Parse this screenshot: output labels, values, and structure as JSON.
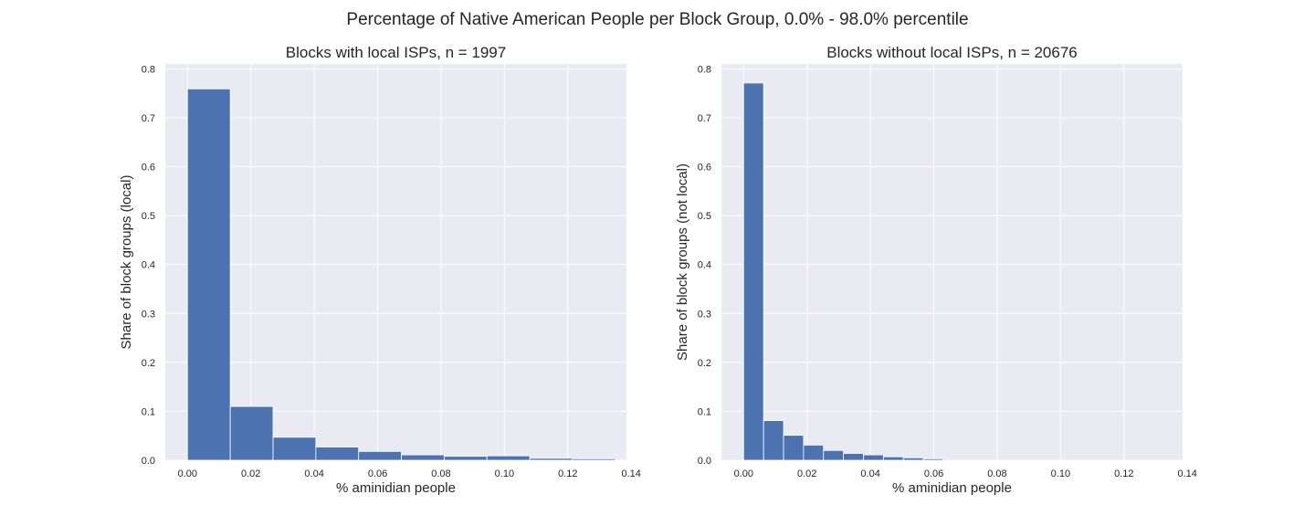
{
  "figure": {
    "suptitle": "Percentage of Native American People per Block Group, 0.0% - 98.0% percentile"
  },
  "chart_data": [
    {
      "type": "bar",
      "histogram": true,
      "title": "Blocks with local ISPs, n = 1997",
      "xlabel": "% aminidian people",
      "ylabel": "Share of block groups (local)",
      "xlim": [
        -0.007,
        0.1385
      ],
      "ylim": [
        0,
        0.81
      ],
      "xticks": [
        "0.00",
        "0.02",
        "0.04",
        "0.06",
        "0.08",
        "0.10",
        "0.12",
        "0.14"
      ],
      "yticks": [
        "0.0",
        "0.1",
        "0.2",
        "0.3",
        "0.4",
        "0.5",
        "0.6",
        "0.7",
        "0.8"
      ],
      "bin_edges": [
        0.0,
        0.0135,
        0.027,
        0.0405,
        0.054,
        0.0675,
        0.081,
        0.0945,
        0.108,
        0.1215,
        0.135
      ],
      "values": [
        0.759,
        0.11,
        0.047,
        0.027,
        0.018,
        0.011,
        0.008,
        0.009,
        0.004,
        0.003
      ],
      "color": "#4c72b0",
      "grid": true,
      "background": "#eaeaf2"
    },
    {
      "type": "bar",
      "histogram": true,
      "title": "Blocks without local ISPs, n = 20676",
      "xlabel": "% aminidian people",
      "ylabel": "Share of block groups (not local)",
      "xlim": [
        -0.007,
        0.1385
      ],
      "ylim": [
        0,
        0.81
      ],
      "xticks": [
        "0.00",
        "0.02",
        "0.04",
        "0.06",
        "0.08",
        "0.10",
        "0.12",
        "0.14"
      ],
      "yticks": [
        "0.0",
        "0.1",
        "0.2",
        "0.3",
        "0.4",
        "0.5",
        "0.6",
        "0.7",
        "0.8"
      ],
      "bin_edges": [
        0.0,
        0.0063,
        0.0126,
        0.0189,
        0.0252,
        0.0315,
        0.0378,
        0.0441,
        0.0504,
        0.0567,
        0.063
      ],
      "values": [
        0.771,
        0.081,
        0.051,
        0.031,
        0.02,
        0.014,
        0.011,
        0.007,
        0.005,
        0.003
      ],
      "color": "#4c72b0",
      "grid": true,
      "background": "#eaeaf2"
    }
  ]
}
